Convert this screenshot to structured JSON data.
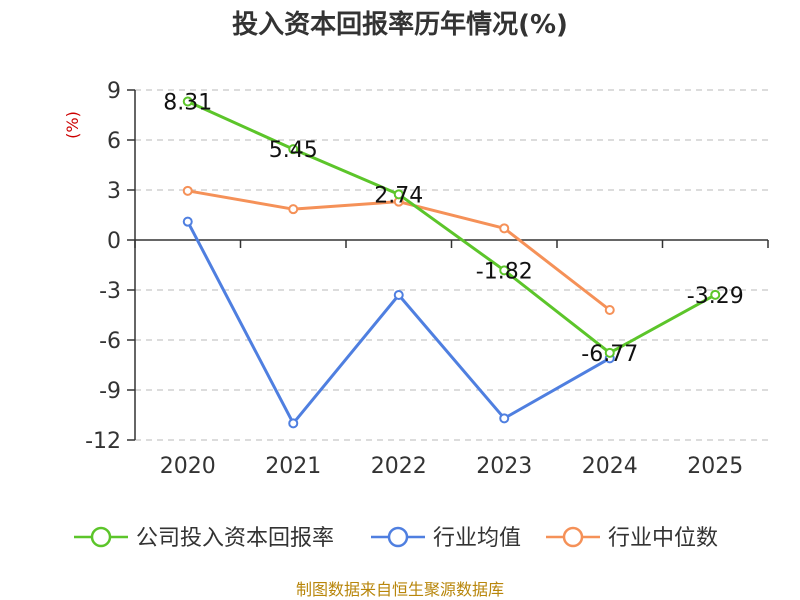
{
  "source_text": "制图数据来自恒生聚源数据库",
  "chart_data": {
    "type": "line",
    "title": "投入资本回报率历年情况(%)",
    "ylabel": "(%)",
    "xlabel": "",
    "ylim": [
      -12,
      9
    ],
    "yticks": [
      9,
      6,
      3,
      0,
      -3,
      -6,
      -9,
      -12
    ],
    "categories": [
      "2020",
      "2021",
      "2022",
      "2023",
      "2024",
      "2025"
    ],
    "grid": true,
    "legend_position": "bottom",
    "series": [
      {
        "name": "公司投入资本回报率",
        "color": "#5cc52a",
        "values": [
          8.31,
          5.45,
          2.74,
          -1.82,
          -6.77,
          -3.29
        ],
        "labels": [
          "8.31",
          "5.45",
          "2.74",
          "-1.82",
          "-6.77",
          "-3.29"
        ]
      },
      {
        "name": "行业均值",
        "color": "#4f7fe0",
        "values": [
          1.1,
          -11.0,
          -3.3,
          -10.7,
          -7.1,
          null
        ]
      },
      {
        "name": "行业中位数",
        "color": "#f59158",
        "values": [
          2.95,
          1.85,
          2.3,
          0.7,
          -4.2,
          null
        ]
      }
    ]
  }
}
